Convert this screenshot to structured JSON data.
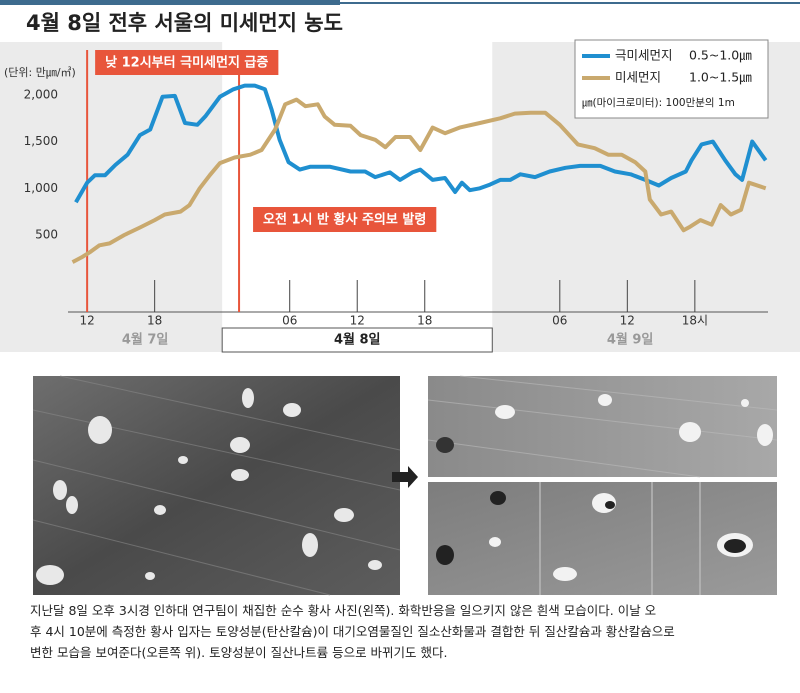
{
  "chart_data": {
    "type": "line",
    "title": "4월 8일 전후 서울의 미세먼지 농도",
    "y_unit_label": "(단위: 만㎛/㎥)",
    "xlim": [
      10.3,
      72.5
    ],
    "ylim": [
      125,
      2535
    ],
    "grid": false,
    "yticks": [
      {
        "value": 500,
        "label": "500"
      },
      {
        "value": 1000,
        "label": "1,000"
      },
      {
        "value": 1500,
        "label": "1,500"
      },
      {
        "value": 2000,
        "label": "2,000"
      }
    ],
    "xticks": [
      {
        "value": 12,
        "label": "12"
      },
      {
        "value": 18,
        "label": "18"
      },
      {
        "value": 30,
        "label": "06"
      },
      {
        "value": 36,
        "label": "12"
      },
      {
        "value": 42,
        "label": "18"
      },
      {
        "value": 54,
        "label": "06"
      },
      {
        "value": 60,
        "label": "12"
      },
      {
        "value": 66,
        "label": "18시"
      }
    ],
    "x_groups": [
      {
        "label": "4월 7일",
        "range": [
          10.3,
          24
        ],
        "highlight": false
      },
      {
        "label": "4월 8일",
        "range": [
          24,
          48
        ],
        "highlight": true
      },
      {
        "label": "4월 9일",
        "range": [
          48,
          72.5
        ],
        "highlight": false
      }
    ],
    "legend_position": "top-right",
    "legend_note": "㎛(마이크로미터): 100만분의 1m",
    "annotations": [
      {
        "text": "낮 12시부터 극미세먼지 급증",
        "x": 12,
        "color": "#e8553b"
      },
      {
        "text": "오전 1시 반  황사 주의보 발령",
        "x": 25.5,
        "color": "#e8553b"
      }
    ],
    "series": [
      {
        "name": "극미세먼지",
        "size": "0.5~1.0㎛",
        "color": "#1f8fd0",
        "x": [
          11,
          12,
          12.7,
          13.6,
          14.5,
          15.6,
          16.7,
          17.6,
          18.7,
          19.8,
          20.7,
          21.8,
          22.5,
          23.8,
          25,
          26,
          26.9,
          27.8,
          28.4,
          29.1,
          29.9,
          30.9,
          31.8,
          33.6,
          35.4,
          36.7,
          37.6,
          38.9,
          39.8,
          40.9,
          41.6,
          42.7,
          43.8,
          44.7,
          45.3,
          46,
          46.9,
          47.8,
          48.7,
          49.6,
          50.5,
          51.8,
          53.1,
          54.5,
          55.8,
          57.6,
          58.9,
          60.3,
          61.6,
          62.8,
          63.9,
          65.2,
          65.7,
          66.6,
          67.6,
          68.7,
          69.6,
          70.2,
          71.1,
          72.3
        ],
        "values": [
          850,
          1060,
          1140,
          1140,
          1250,
          1360,
          1570,
          1630,
          1980,
          1990,
          1700,
          1680,
          1770,
          1980,
          2060,
          2100,
          2100,
          2060,
          1840,
          1520,
          1280,
          1200,
          1230,
          1230,
          1180,
          1180,
          1120,
          1170,
          1090,
          1170,
          1200,
          1090,
          1110,
          960,
          1060,
          980,
          1000,
          1040,
          1090,
          1090,
          1150,
          1120,
          1180,
          1220,
          1240,
          1240,
          1180,
          1150,
          1090,
          1030,
          1110,
          1180,
          1300,
          1470,
          1500,
          1300,
          1150,
          1090,
          1500,
          1300
        ]
      },
      {
        "name": "미세먼지",
        "size": "1.0~1.5㎛",
        "color": "#c9a96e",
        "x": [
          10.7,
          11.5,
          12.3,
          13.1,
          14,
          15.3,
          16.7,
          18,
          18.9,
          20.3,
          21.1,
          22,
          22.9,
          23.8,
          25.1,
          26.5,
          27.5,
          28.7,
          29.6,
          30.6,
          31.4,
          32.5,
          33.1,
          34,
          35.4,
          36.3,
          37.6,
          38.5,
          39.4,
          40.7,
          41.6,
          42.7,
          43.8,
          45.1,
          46.9,
          48.7,
          50,
          51.4,
          52.7,
          54,
          55.6,
          57.1,
          58.3,
          59.5,
          60.7,
          61.6,
          62,
          63,
          63.9,
          65,
          65.6,
          66.5,
          67.5,
          68.3,
          69.2,
          70.1,
          70.8,
          72.3
        ],
        "values": [
          210,
          260,
          320,
          390,
          410,
          500,
          580,
          660,
          720,
          750,
          820,
          1000,
          1140,
          1270,
          1330,
          1360,
          1410,
          1630,
          1900,
          1950,
          1880,
          1900,
          1770,
          1680,
          1670,
          1570,
          1520,
          1440,
          1550,
          1550,
          1410,
          1650,
          1590,
          1650,
          1700,
          1750,
          1800,
          1810,
          1810,
          1680,
          1470,
          1430,
          1360,
          1360,
          1280,
          1180,
          880,
          720,
          750,
          550,
          590,
          660,
          610,
          820,
          720,
          770,
          1060,
          1000
        ]
      }
    ]
  },
  "caption_lines": [
    "지난달 8일 오후 3시경 인하대 연구팀이 채집한 순수 황사 사진(왼쪽). 화학반응을 일으키지 않은 흰색 모습이다. 이날 오",
    "후 4시 10분에 측정한 황사 입자는 토양성분(탄산칼슘)이 대기오염물질인 질소산화물과 결합한 뒤 질산칼슘과 황산칼슘으로",
    "변한 모습을 보여준다(오른쪽 위). 토양성분이 질산나트륨 등으로 바뀌기도 했다."
  ]
}
